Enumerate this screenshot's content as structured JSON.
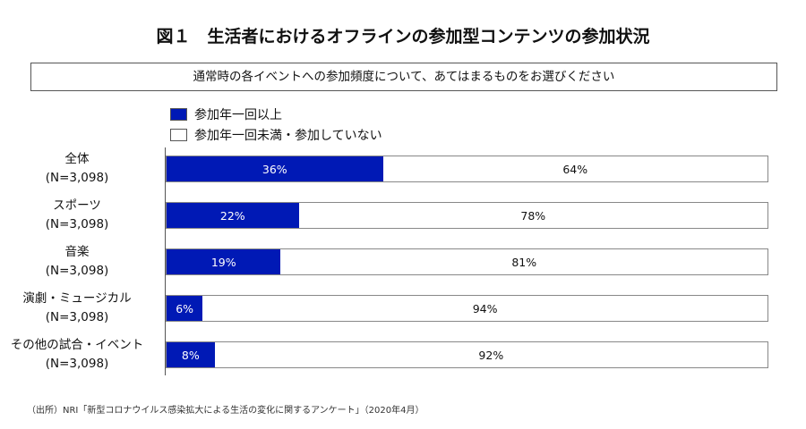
{
  "title": "図１　生活者におけるオフラインの参加型コンテンツの参加状況",
  "question": "通常時の各イベントへの参加頻度について、あてはまるものをお選びください",
  "source": "（出所）NRI「新型コロナウイルス感染拡大による生活の変化に関するアンケート」（2020年4月）",
  "chart_data": {
    "type": "bar",
    "stacked": true,
    "orientation": "horizontal",
    "title": "図１　生活者におけるオフラインの参加型コンテンツの参加状況",
    "categories": [
      "全体",
      "スポーツ",
      "音楽",
      "演劇・ミュージカル",
      "その他の試合・イベント"
    ],
    "sample_sizes": [
      "(N=3,098)",
      "(N=3,098)",
      "(N=3,098)",
      "(N=3,098)",
      "(N=3,098)"
    ],
    "series": [
      {
        "name": "参加年一回以上",
        "color": "#0019b5",
        "values": [
          36,
          22,
          19,
          6,
          8
        ]
      },
      {
        "name": "参加年一回未満・参加していない",
        "color": "#ffffff",
        "values": [
          64,
          78,
          81,
          94,
          92
        ]
      }
    ],
    "unit": "%",
    "xlim": [
      0,
      100
    ],
    "legend": "top-left"
  }
}
